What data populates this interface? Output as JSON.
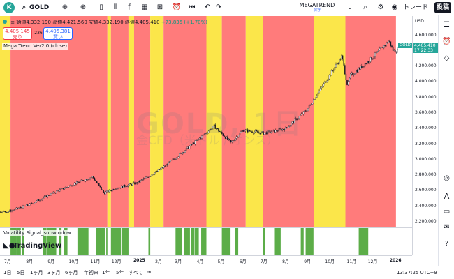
{
  "toolbar": {
    "avatar_letter": "K",
    "symbol": "GOLD",
    "interval": "1日",
    "indicator": "MEGATREND",
    "indicator_sub": "保存",
    "trade": "トレード",
    "publish": "投稿"
  },
  "legend": {
    "open": "始値4,332.190",
    "high": "高値4,421.560",
    "low": "安値4,332.190",
    "close": "終値4,405.410",
    "change": "+73.835 (+1.70%)",
    "sell_price": "4,405.145",
    "sell_label": "売り",
    "spread": "236",
    "buy_price": "4,405.381",
    "buy_label": "買い",
    "indicator": "Mega Trend Ver2.0 (close)",
    "volatility": "Volatility Signal_subwindow"
  },
  "watermark": {
    "title": "GOLD, 1日",
    "subtitle": "金CFD（米ドル / オンス）"
  },
  "brand": "TradingView",
  "price_scale": {
    "currency": "USD",
    "ticks": [
      "4,600.000",
      "4,400.000",
      "4,200.000",
      "4,000.000",
      "3,800.000",
      "3,600.000",
      "3,400.000",
      "3,200.000",
      "3,000.000",
      "2,800.000",
      "2,600.000",
      "2,400.000",
      "2,200.000"
    ],
    "symbol_tag": "GOLD",
    "last_price": "4,405.410",
    "countdown": "17:22:33"
  },
  "time_scale": [
    "7月",
    "8月",
    "9月",
    "10月",
    "11月",
    "12月",
    "2025",
    "2月",
    "3月",
    "4月",
    "5月",
    "6月",
    "7月",
    "8月",
    "9月",
    "10月",
    "11月",
    "12月",
    "2026"
  ],
  "ranges": [
    "1日",
    "5日",
    "1ヶ月",
    "3ヶ月",
    "6ヶ月",
    "年初来",
    "1年",
    "5年",
    "すべて"
  ],
  "clock": "13:37:25 UTC+9",
  "colors": {
    "red": "#ff7b7b",
    "yellow": "#fbe64a",
    "green": "#5cad48",
    "teal": "#26a69a"
  },
  "chart_data": {
    "type": "line",
    "ylim": [
      2200,
      4650
    ],
    "close_series": [
      {
        "x": "2024-07",
        "y": 2330
      },
      {
        "x": "2024-08",
        "y": 2420
      },
      {
        "x": "2024-09",
        "y": 2560
      },
      {
        "x": "2024-10",
        "y": 2680
      },
      {
        "x": "2024-10-30",
        "y": 2780
      },
      {
        "x": "2024-11-15",
        "y": 2570
      },
      {
        "x": "2024-12",
        "y": 2630
      },
      {
        "x": "2025-01",
        "y": 2700
      },
      {
        "x": "2025-02",
        "y": 2860
      },
      {
        "x": "2025-03",
        "y": 3050
      },
      {
        "x": "2025-04-21",
        "y": 3430
      },
      {
        "x": "2025-05-15",
        "y": 3220
      },
      {
        "x": "2025-06",
        "y": 3380
      },
      {
        "x": "2025-07",
        "y": 3340
      },
      {
        "x": "2025-08",
        "y": 3400
      },
      {
        "x": "2025-09",
        "y": 3650
      },
      {
        "x": "2025-10-20",
        "y": 4330
      },
      {
        "x": "2025-10-28",
        "y": 3950
      },
      {
        "x": "2025-11",
        "y": 4080
      },
      {
        "x": "2025-12",
        "y": 4300
      },
      {
        "x": "2025-12-26",
        "y": 4530
      },
      {
        "x": "2026-01",
        "y": 4405
      }
    ],
    "trend_bands": [
      {
        "from": "2024-06",
        "to": "2024-07-05",
        "color": "yellow"
      },
      {
        "from": "2024-07-05",
        "to": "2024-11-20",
        "color": "red"
      },
      {
        "from": "2024-11-20",
        "to": "2024-11-25",
        "color": "yellow"
      },
      {
        "from": "2024-11-25",
        "to": "2024-12-20",
        "color": "red"
      },
      {
        "from": "2024-12-20",
        "to": "2024-12-28",
        "color": "yellow"
      },
      {
        "from": "2024-12-28",
        "to": "2025-01-20",
        "color": "red"
      },
      {
        "from": "2025-01-20",
        "to": "2025-02-08",
        "color": "yellow"
      },
      {
        "from": "2025-02-08",
        "to": "2025-04-10",
        "color": "red"
      },
      {
        "from": "2025-04-10",
        "to": "2025-05-02",
        "color": "yellow"
      },
      {
        "from": "2025-05-02",
        "to": "2025-06-05",
        "color": "red"
      },
      {
        "from": "2025-06-05",
        "to": "2025-06-30",
        "color": "yellow"
      },
      {
        "from": "2025-06-30",
        "to": "2025-09-10",
        "color": "red"
      },
      {
        "from": "2025-09-10",
        "to": "2025-10-25",
        "color": "yellow"
      },
      {
        "from": "2025-10-25",
        "to": "2026-01-05",
        "color": "red"
      }
    ]
  }
}
